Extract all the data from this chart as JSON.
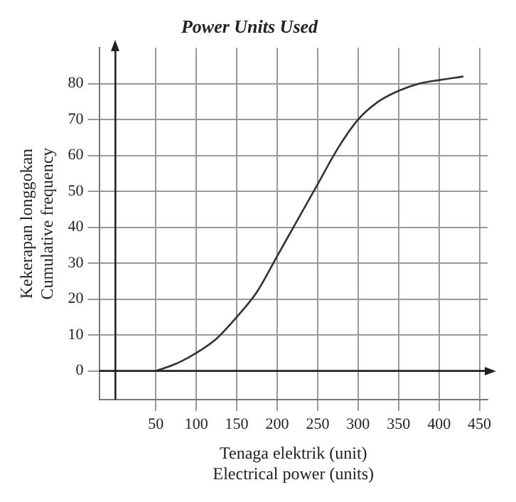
{
  "chart_data": {
    "type": "line",
    "title": "Power Units Used",
    "xlabel": "Tenaga elektrik (unit)\nElectrical power (units)",
    "ylabel": "Kekerapan longgokan\nCumulative frequency",
    "x": [
      50,
      75,
      100,
      125,
      150,
      175,
      200,
      225,
      250,
      275,
      300,
      325,
      350,
      375,
      400,
      430
    ],
    "values": [
      0,
      2,
      5,
      9,
      15,
      22,
      32,
      42,
      52,
      62,
      70,
      75,
      78,
      80,
      81,
      82
    ],
    "color": "#333333",
    "xlim": [
      -20,
      460
    ],
    "ylim": [
      -8,
      90
    ],
    "xticks": [
      50,
      100,
      150,
      200,
      250,
      300,
      350,
      400,
      450
    ],
    "yticks": [
      0,
      10,
      20,
      30,
      40,
      50,
      60,
      70,
      80
    ],
    "grid": true,
    "marker": "none",
    "line_style": "solid"
  }
}
